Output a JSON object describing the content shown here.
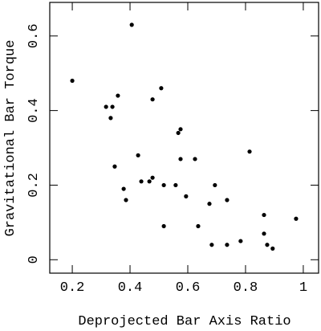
{
  "chart_data": {
    "type": "scatter",
    "x_label": "Deprojected Bar Axis Ratio",
    "y_label": "Gravitational Bar Torque",
    "color": "#000000",
    "x": [
      0.2,
      0.317,
      0.333,
      0.339,
      0.358,
      0.347,
      0.406,
      0.378,
      0.386,
      0.428,
      0.439,
      0.467,
      0.478,
      0.478,
      0.508,
      0.517,
      0.517,
      0.558,
      0.567,
      0.575,
      0.575,
      0.594,
      0.625,
      0.636,
      0.675,
      0.683,
      0.694,
      0.736,
      0.736,
      0.783,
      0.814,
      0.864,
      0.864,
      0.875,
      0.894,
      0.975
    ],
    "values": [
      0.48,
      0.41,
      0.38,
      0.41,
      0.44,
      0.25,
      0.63,
      0.19,
      0.16,
      0.28,
      0.21,
      0.21,
      0.22,
      0.43,
      0.46,
      0.2,
      0.09,
      0.2,
      0.34,
      0.35,
      0.27,
      0.17,
      0.27,
      0.09,
      0.15,
      0.04,
      0.2,
      0.04,
      0.16,
      0.05,
      0.29,
      0.12,
      0.07,
      0.04,
      0.03,
      0.11
    ],
    "xlim": [
      0.122,
      1.053
    ],
    "ylim": [
      -0.036,
      0.69
    ],
    "xticks": [
      0.2,
      0.4,
      0.6,
      0.8,
      1
    ],
    "yticks": [
      0,
      0.2,
      0.4,
      0.6
    ]
  }
}
